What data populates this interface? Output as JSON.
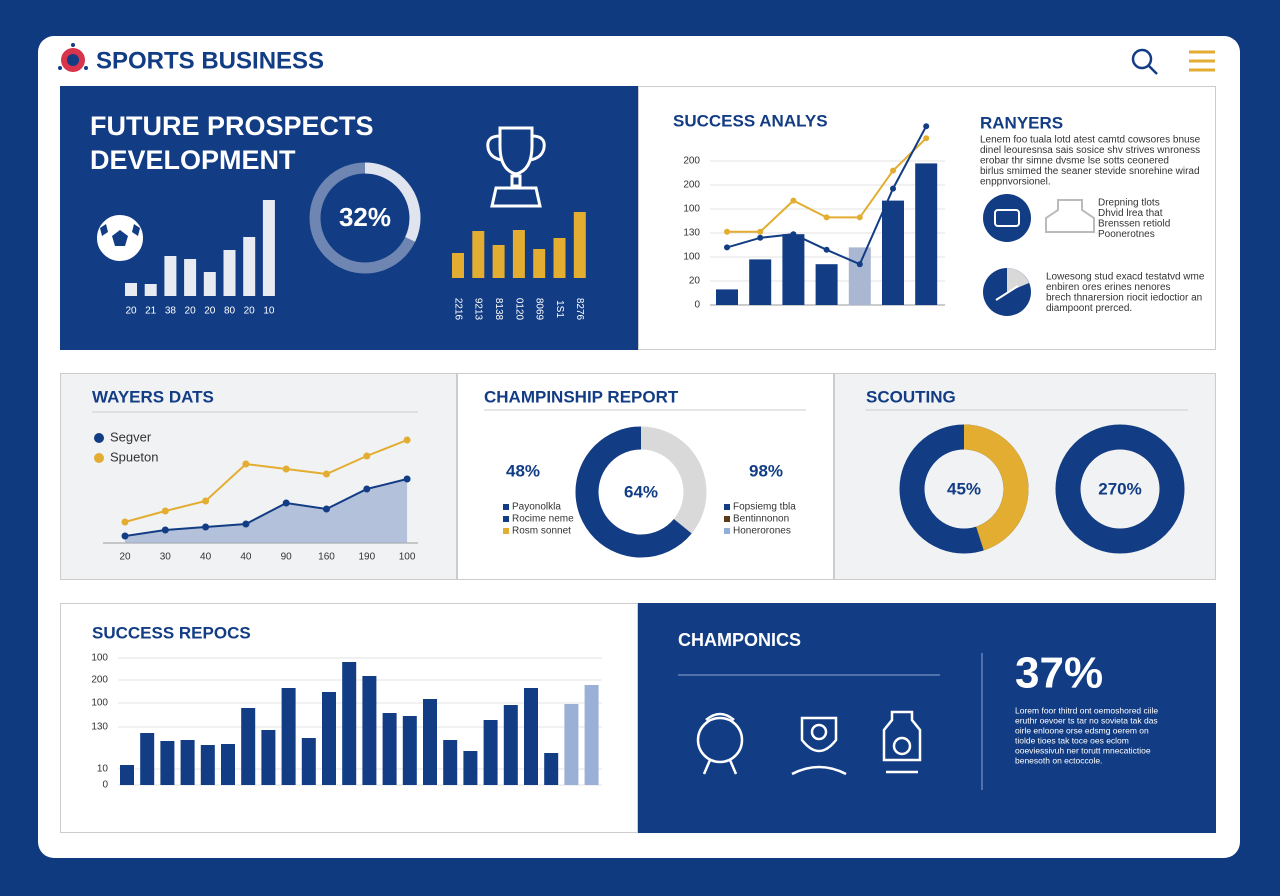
{
  "header": {
    "title": "SPORTS BUSINESS"
  },
  "prospects": {
    "title_lines": [
      "FUTURE PROSPECTS",
      "DEVELOPMENT"
    ],
    "bars": {
      "categories": [
        "20",
        "21",
        "38",
        "20",
        "20",
        "80",
        "20",
        "10"
      ],
      "values": [
        13,
        12,
        40,
        37,
        24,
        46,
        59,
        96
      ],
      "color": "#e8ebf2"
    },
    "ring": {
      "value": 32,
      "label": "32%"
    },
    "gold_bars": {
      "categories": [
        "2216",
        "9213",
        "8138",
        "0120",
        "8069",
        "1S1",
        "8276"
      ],
      "values": [
        25,
        47,
        33,
        48,
        29,
        40,
        66
      ],
      "color": "#e2ad30"
    }
  },
  "analysis": {
    "title": "SUCCESS ANALYS",
    "ylim": [
      0,
      150
    ],
    "yticks": [
      0,
      20,
      {
        "value": 40,
        "label": "100"
      },
      {
        "value": 60,
        "label": "130"
      },
      {
        "value": 80,
        "label": "100"
      },
      {
        "value": 100,
        "label": "200"
      },
      {
        "value": 120,
        "label": "200"
      }
    ],
    "values": [
      13,
      38,
      59,
      34,
      48,
      87,
      118
    ],
    "bar_colors": [
      "#123c84",
      "#123c84",
      "#123c84",
      "#123c84",
      "#a9b7d3",
      "#123c84",
      "#123c84"
    ],
    "series": [
      {
        "color": "#e2ad30",
        "values": [
          61,
          61,
          87,
          73,
          73,
          112,
          139
        ]
      },
      {
        "color": "#123c84",
        "values": [
          48,
          56,
          59,
          46,
          34,
          97,
          149
        ]
      }
    ]
  },
  "rankers": {
    "title": "RANYERS",
    "lines": [
      "Lenem foo tuala lotd atest camtd cowsores bnuse",
      "dinel leouresnsa sais sosice shv strives wnroness",
      "erobar thr simne dvsme lse sotts ceonered",
      "birlus smimed the seaner stevide snorehine wirad",
      "enppnvorsionel."
    ],
    "items": [
      {
        "lines": [
          "Drepning tlots",
          "Dhvid lrea that",
          "Brenssen retiold",
          "Poonerotnes"
        ]
      },
      {
        "lines": [
          "Lowesong stud exacd testatvd wme",
          "enbiren ores erines nenores",
          "brech thnarersion riocit iedoctior an",
          "diampoont prerced."
        ]
      }
    ]
  },
  "players": {
    "title": "WAYERS DATS",
    "categories": [
      "20",
      "30",
      "40",
      "40",
      "90",
      "160",
      "190",
      "100"
    ],
    "series": [
      {
        "name": "Segver",
        "color": "#123c84",
        "values": [
          7,
          13,
          16,
          19,
          40,
          34,
          54,
          64
        ]
      },
      {
        "name": "Spueton",
        "color": "#e2ad30",
        "values": [
          21,
          32,
          42,
          79,
          74,
          69,
          87,
          103
        ]
      }
    ]
  },
  "championship": {
    "title": "CHAMPINSHIP REPORT",
    "left": {
      "stat": "48%",
      "legend": [
        "Payonolkla",
        "Rocime neme",
        "Rosm sonnet"
      ],
      "colors": [
        "#123c84",
        "#123c84",
        "#e2ad30"
      ]
    },
    "donut": {
      "value": 64,
      "label": "64%",
      "color": "#123c84",
      "track": "#d9d9d9"
    },
    "right": {
      "stat": "98%",
      "legend": [
        "Fopsiemg tbla",
        "Bentinnonon",
        "Honerorones"
      ],
      "colors": [
        "#123c84",
        "#5a3a1a",
        "#8fb0d8"
      ]
    }
  },
  "scouting": {
    "title": "SCOUTING",
    "donuts": [
      {
        "value": 45,
        "label": "45%",
        "color": "#e2ad30",
        "track": "#123c84"
      },
      {
        "value": 270,
        "label": "270%",
        "color": "#123c84",
        "track": "#d9d9d9"
      }
    ]
  },
  "reports": {
    "title": "SUCCESS REPOCS",
    "ylim": [
      0,
      130
    ],
    "yticks": [
      0,
      {
        "value": 16,
        "label": "10"
      },
      {
        "value": 58,
        "label": "130"
      },
      {
        "value": 82,
        "label": "100"
      },
      {
        "value": 105,
        "label": "200"
      },
      {
        "value": 127,
        "label": "100"
      }
    ],
    "values": [
      20,
      52,
      44,
      45,
      40,
      41,
      77,
      55,
      97,
      47,
      93,
      123,
      109,
      72,
      69,
      86,
      45,
      34,
      65,
      80,
      97,
      32,
      81,
      100
    ],
    "bar_colors": [
      "#123c84",
      "#123c84",
      "#123c84",
      "#123c84",
      "#123c84",
      "#123c84",
      "#123c84",
      "#123c84",
      "#123c84",
      "#123c84",
      "#123c84",
      "#123c84",
      "#123c84",
      "#123c84",
      "#123c84",
      "#123c84",
      "#123c84",
      "#123c84",
      "#123c84",
      "#123c84",
      "#123c84",
      "#123c84",
      "#9ab0d6",
      "#9ab0d6"
    ]
  },
  "champonics": {
    "title": "CHAMPONICS",
    "stat": "37%",
    "lines": [
      "Lorem foor thitrd ont oemoshored ciile",
      "eruthr oevoer ts tar no sovieta tak das",
      "oirle enloone orse edsmg oerem on",
      "tiolde tioes tak toce oes eclom",
      "ooeviessivuh ner torutt mnecatictioe",
      "benesoth on ectoccole."
    ]
  }
}
